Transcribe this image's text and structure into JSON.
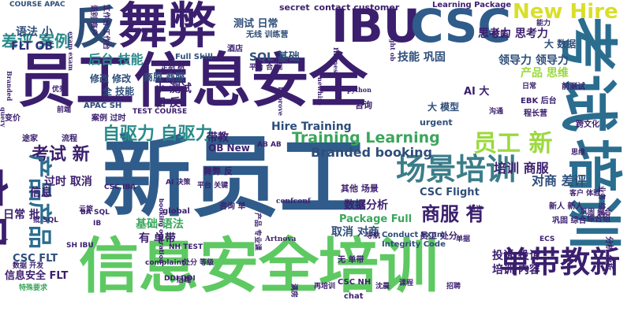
{
  "palette": {
    "indigo": "#3b1f6e",
    "navy": "#2e2f7a",
    "blue": "#2f5c8a",
    "teal": "#2a8b8b",
    "green": "#3aa65b",
    "lime": "#8fd14a",
    "yellow": "#e0e12a",
    "dark": "#4b1a6b"
  },
  "words": [
    {
      "text": "员工信息安全"
    },
    {
      "text": "新员工"
    },
    {
      "text": "信息安全培训"
    },
    {
      "text": "考试"
    },
    {
      "text": "培训"
    },
    {
      "text": "产品"
    },
    {
      "text": "IBU"
    },
    {
      "text": "CSC"
    },
    {
      "text": "舞弊"
    },
    {
      "text": "反"
    },
    {
      "text": "场景培训"
    },
    {
      "text": "单带教新"
    },
    {
      "text": "New Hire"
    },
    {
      "text": "差评 案例"
    },
    {
      "text": "自驱力 自驱力"
    },
    {
      "text": "员工 新"
    },
    {
      "text": "考试 新"
    },
    {
      "text": "产品产品"
    },
    {
      "text": "商服 有"
    },
    {
      "text": "Training Learning"
    },
    {
      "text": "Branded booking"
    },
    {
      "text": "Hire Training"
    },
    {
      "text": "培训 商服"
    },
    {
      "text": "对商 差评"
    },
    {
      "text": "后台 技能"
    },
    {
      "text": "FLT OB"
    },
    {
      "text": "语法 小"
    },
    {
      "text": "思考力 思考力"
    },
    {
      "text": "领导力 领导力"
    },
    {
      "text": "技能 巩固"
    },
    {
      "text": "产品 思维"
    },
    {
      "text": "SQL 基础"
    },
    {
      "text": "基础 语法"
    },
    {
      "text": "数据分析"
    },
    {
      "text": "Package Full"
    },
    {
      "text": "CSC Flight"
    },
    {
      "text": "取消 对商"
    },
    {
      "text": "投诉 投诉"
    },
    {
      "text": "培训 内容"
    },
    {
      "text": "信息安全 FLT"
    },
    {
      "text": "CSC FLT"
    },
    {
      "text": "小 测试"
    },
    {
      "text": "和 反"
    },
    {
      "text": "全 技能"
    },
    {
      "text": "修改 修改"
    },
    {
      "text": "商服 商服"
    },
    {
      "text": "测试 日常"
    },
    {
      "text": "日常 批"
    },
    {
      "text": "过时 取消"
    },
    {
      "text": "信息"
    },
    {
      "text": "有 单带"
    },
    {
      "text": "OB New"
    },
    {
      "text": "舞弊 反"
    },
    {
      "text": "带教"
    },
    {
      "text": "Full Skill"
    },
    {
      "text": "AI 大"
    },
    {
      "text": "大 模型"
    },
    {
      "text": "大 数据"
    },
    {
      "text": "secret"
    },
    {
      "text": "contact customer"
    },
    {
      "text": "Learning Package"
    },
    {
      "text": "COURSE APAC"
    },
    {
      "text": "无线 训练营"
    },
    {
      "text": "Integrity Code"
    },
    {
      "text": "Conduct Exam"
    },
    {
      "text": "urgent"
    },
    {
      "text": "CSC NH"
    },
    {
      "text": "新人 新人"
    },
    {
      "text": "案例 过时"
    },
    {
      "text": "APAC SH"
    },
    {
      "text": "其他 场景"
    },
    {
      "text": "员工 处分"
    },
    {
      "text": "无 单带"
    },
    {
      "text": "巩固 综合"
    },
    {
      "text": "前测试"
    },
    {
      "text": "跨文化"
    },
    {
      "text": "综合组"
    },
    {
      "text": "咨询"
    },
    {
      "text": "咨询 单"
    },
    {
      "text": "平台 关键"
    },
    {
      "text": "Artnova"
    },
    {
      "text": "confconf"
    },
    {
      "text": "global"
    },
    {
      "text": "SH IBU"
    },
    {
      "text": "DDI DDI"
    },
    {
      "text": "complaint"
    },
    {
      "text": "NH TEST"
    },
    {
      "text": "TEST COURSE"
    },
    {
      "text": "EBK 后台"
    },
    {
      "text": "数据 开发"
    },
    {
      "text": "特殊要求"
    },
    {
      "text": "巩固 综合"
    },
    {
      "text": "chat"
    },
    {
      "text": "python"
    },
    {
      "text": "Improve"
    },
    {
      "text": "Harness"
    },
    {
      "text": "newhire"
    },
    {
      "text": "credo"
    },
    {
      "text": "query"
    },
    {
      "text": "flight ob"
    },
    {
      "text": "exam exam"
    },
    {
      "text": "产品 专业课"
    },
    {
      "text": "业务 综合"
    },
    {
      "text": "分析 分析"
    },
    {
      "text": "思维"
    },
    {
      "text": "途家"
    },
    {
      "text": "流程"
    },
    {
      "text": "变价"
    },
    {
      "text": "技能"
    },
    {
      "text": "酒店"
    },
    {
      "text": "批 SQL"
    },
    {
      "text": "特许"
    },
    {
      "text": "沟通"
    },
    {
      "text": "能力"
    },
    {
      "text": "程长营"
    },
    {
      "text": "再培训"
    },
    {
      "text": "满房"
    },
    {
      "text": "课程"
    },
    {
      "text": "沈晨"
    },
    {
      "text": "单据"
    },
    {
      "text": "处分 等级"
    },
    {
      "text": "识别 商户"
    },
    {
      "text": "工作台 工作台"
    },
    {
      "text": "定制 树"
    },
    {
      "text": "招聘"
    },
    {
      "text": "AI 决策"
    },
    {
      "text": "Branded"
    },
    {
      "text": "IB"
    },
    {
      "text": "BA SQL"
    },
    {
      "text": "CSC IBA"
    },
    {
      "text": "平台 合 规"
    },
    {
      "text": "客户 体验"
    },
    {
      "text": "日常"
    },
    {
      "text": "booking operation"
    },
    {
      "text": "ECS"
    },
    {
      "text": "AB AB"
    },
    {
      "text": "导航"
    },
    {
      "text": "云旅"
    },
    {
      "text": "后端"
    },
    {
      "text": "优秀"
    },
    {
      "text": "前端"
    }
  ]
}
